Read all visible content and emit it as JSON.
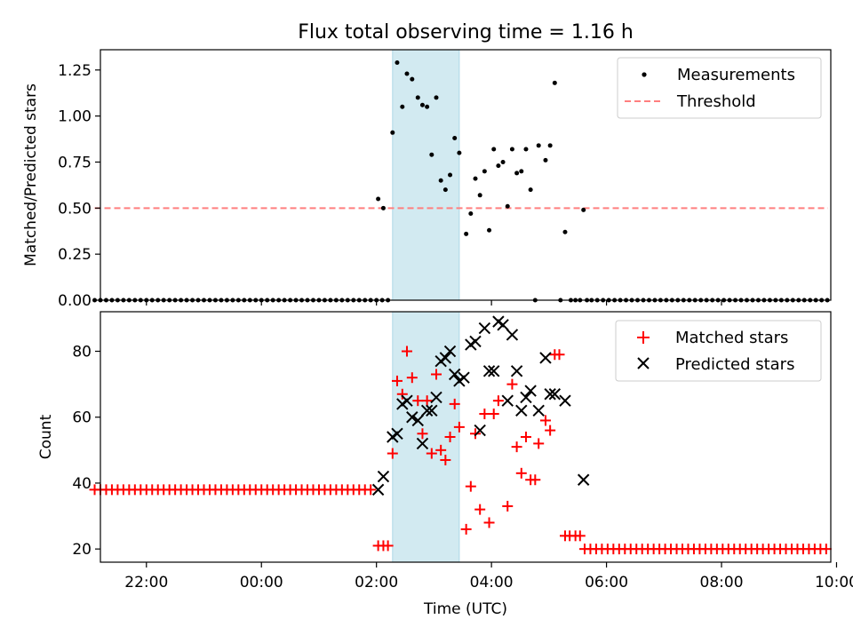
{
  "chart_data": [
    {
      "type": "scatter",
      "title": "Flux total observing time = 1.16 h",
      "xlabel": "",
      "ylabel": "Matched/Predicted stars",
      "ylim": [
        0,
        1.36
      ],
      "xlim": [
        -2.8,
        9.9
      ],
      "yticks": [
        "0.00",
        "0.25",
        "0.50",
        "0.75",
        "1.00",
        "1.25"
      ],
      "ytick_values": [
        0,
        0.25,
        0.5,
        0.75,
        1.0,
        1.25
      ],
      "legend_position": "top-right",
      "shaded_span": {
        "x0": 2.28,
        "x1": 3.44,
        "color": "#add8e6"
      },
      "series": [
        {
          "name": "Measurements",
          "marker": "dot",
          "color": "#000000",
          "x_zero_start": -2.9,
          "x_zero_end": 2.2,
          "x_zero_step": 0.1,
          "points": [
            [
              2.03,
              0.55
            ],
            [
              2.12,
              0.5
            ],
            [
              2.28,
              0.91
            ],
            [
              2.36,
              1.29
            ],
            [
              2.45,
              1.05
            ],
            [
              2.53,
              1.23
            ],
            [
              2.62,
              1.2
            ],
            [
              2.72,
              1.1
            ],
            [
              2.8,
              1.06
            ],
            [
              2.88,
              1.05
            ],
            [
              2.96,
              0.79
            ],
            [
              3.04,
              1.1
            ],
            [
              3.12,
              0.65
            ],
            [
              3.2,
              0.6
            ],
            [
              3.28,
              0.68
            ],
            [
              3.36,
              0.88
            ],
            [
              3.44,
              0.8
            ],
            [
              3.56,
              0.36
            ],
            [
              3.64,
              0.47
            ],
            [
              3.72,
              0.66
            ],
            [
              3.8,
              0.57
            ],
            [
              3.88,
              0.7
            ],
            [
              3.96,
              0.38
            ],
            [
              4.04,
              0.82
            ],
            [
              4.12,
              0.73
            ],
            [
              4.2,
              0.75
            ],
            [
              4.28,
              0.51
            ],
            [
              4.36,
              0.82
            ],
            [
              4.44,
              0.69
            ],
            [
              4.52,
              0.7
            ],
            [
              4.6,
              0.82
            ],
            [
              4.68,
              0.6
            ],
            [
              4.82,
              0.84
            ],
            [
              4.94,
              0.76
            ],
            [
              5.02,
              0.84
            ],
            [
              5.1,
              1.18
            ],
            [
              5.28,
              0.37
            ],
            [
              5.6,
              0.49
            ]
          ],
          "zeros_after": [
            4.76,
            5.2,
            5.38,
            5.46,
            5.54,
            5.66
          ],
          "x_zero_tail_start": 5.74,
          "x_zero_tail_end": 9.85
        },
        {
          "name": "Threshold",
          "style": "dashed",
          "color": "#ff7f7f",
          "x": [
            -2.9,
            9.85
          ],
          "values": [
            0.5,
            0.5
          ]
        }
      ]
    },
    {
      "type": "scatter",
      "title": "",
      "xlabel": "Time (UTC)",
      "ylabel": "Count",
      "ylim": [
        16,
        92
      ],
      "xlim": [
        -2.8,
        9.9
      ],
      "yticks": [
        "20",
        "40",
        "60",
        "80"
      ],
      "ytick_values": [
        20,
        40,
        60,
        80
      ],
      "xticks": [
        "22:00",
        "00:00",
        "02:00",
        "04:00",
        "06:00",
        "08:00",
        "10:00"
      ],
      "xtick_values": [
        -2,
        0,
        2,
        4,
        6,
        8,
        10
      ],
      "legend_position": "top-right",
      "shaded_span": {
        "x0": 2.28,
        "x1": 3.44,
        "color": "#add8e6"
      },
      "series": [
        {
          "name": "Matched stars",
          "marker": "plus",
          "color": "#ff0000",
          "flat_start": {
            "x_from": -2.9,
            "x_to": 1.95,
            "step": 0.1,
            "value": 38
          },
          "points": [
            [
              2.03,
              21
            ],
            [
              2.12,
              21
            ],
            [
              2.2,
              21
            ],
            [
              2.28,
              49
            ],
            [
              2.36,
              71
            ],
            [
              2.45,
              67
            ],
            [
              2.53,
              80
            ],
            [
              2.62,
              72
            ],
            [
              2.72,
              65
            ],
            [
              2.8,
              55
            ],
            [
              2.88,
              65
            ],
            [
              2.96,
              49
            ],
            [
              3.04,
              73
            ],
            [
              3.12,
              50
            ],
            [
              3.2,
              47
            ],
            [
              3.28,
              54
            ],
            [
              3.36,
              64
            ],
            [
              3.44,
              57
            ],
            [
              3.56,
              26
            ],
            [
              3.64,
              39
            ],
            [
              3.72,
              55
            ],
            [
              3.8,
              32
            ],
            [
              3.88,
              61
            ],
            [
              3.96,
              28
            ],
            [
              4.04,
              61
            ],
            [
              4.12,
              65
            ],
            [
              4.28,
              33
            ],
            [
              4.36,
              70
            ],
            [
              4.44,
              51
            ],
            [
              4.52,
              43
            ],
            [
              4.6,
              54
            ],
            [
              4.68,
              41
            ],
            [
              4.76,
              41
            ],
            [
              4.82,
              52
            ],
            [
              4.94,
              59
            ],
            [
              5.02,
              56
            ],
            [
              5.1,
              79
            ],
            [
              5.18,
              79
            ],
            [
              5.28,
              24
            ],
            [
              5.36,
              24
            ],
            [
              5.46,
              24
            ],
            [
              5.54,
              24
            ]
          ],
          "flat_end": {
            "x_from": 5.62,
            "x_to": 9.85,
            "step": 0.1,
            "value": 20
          }
        },
        {
          "name": "Predicted stars",
          "marker": "x",
          "color": "#000000",
          "points": [
            [
              2.03,
              38
            ],
            [
              2.12,
              42
            ],
            [
              2.28,
              54
            ],
            [
              2.36,
              55
            ],
            [
              2.45,
              64
            ],
            [
              2.53,
              65
            ],
            [
              2.62,
              60
            ],
            [
              2.72,
              59
            ],
            [
              2.8,
              52
            ],
            [
              2.88,
              62
            ],
            [
              2.96,
              62
            ],
            [
              3.04,
              66
            ],
            [
              3.12,
              77
            ],
            [
              3.2,
              78
            ],
            [
              3.28,
              80
            ],
            [
              3.36,
              73
            ],
            [
              3.44,
              71
            ],
            [
              3.52,
              72
            ],
            [
              3.64,
              82
            ],
            [
              3.72,
              83
            ],
            [
              3.8,
              56
            ],
            [
              3.88,
              87
            ],
            [
              3.96,
              74
            ],
            [
              4.04,
              74
            ],
            [
              4.12,
              89
            ],
            [
              4.2,
              88
            ],
            [
              4.28,
              65
            ],
            [
              4.36,
              85
            ],
            [
              4.44,
              74
            ],
            [
              4.52,
              62
            ],
            [
              4.6,
              66
            ],
            [
              4.68,
              68
            ],
            [
              4.82,
              62
            ],
            [
              4.94,
              78
            ],
            [
              5.02,
              67
            ],
            [
              5.1,
              67
            ],
            [
              5.28,
              65
            ],
            [
              5.6,
              41
            ]
          ]
        }
      ]
    }
  ]
}
